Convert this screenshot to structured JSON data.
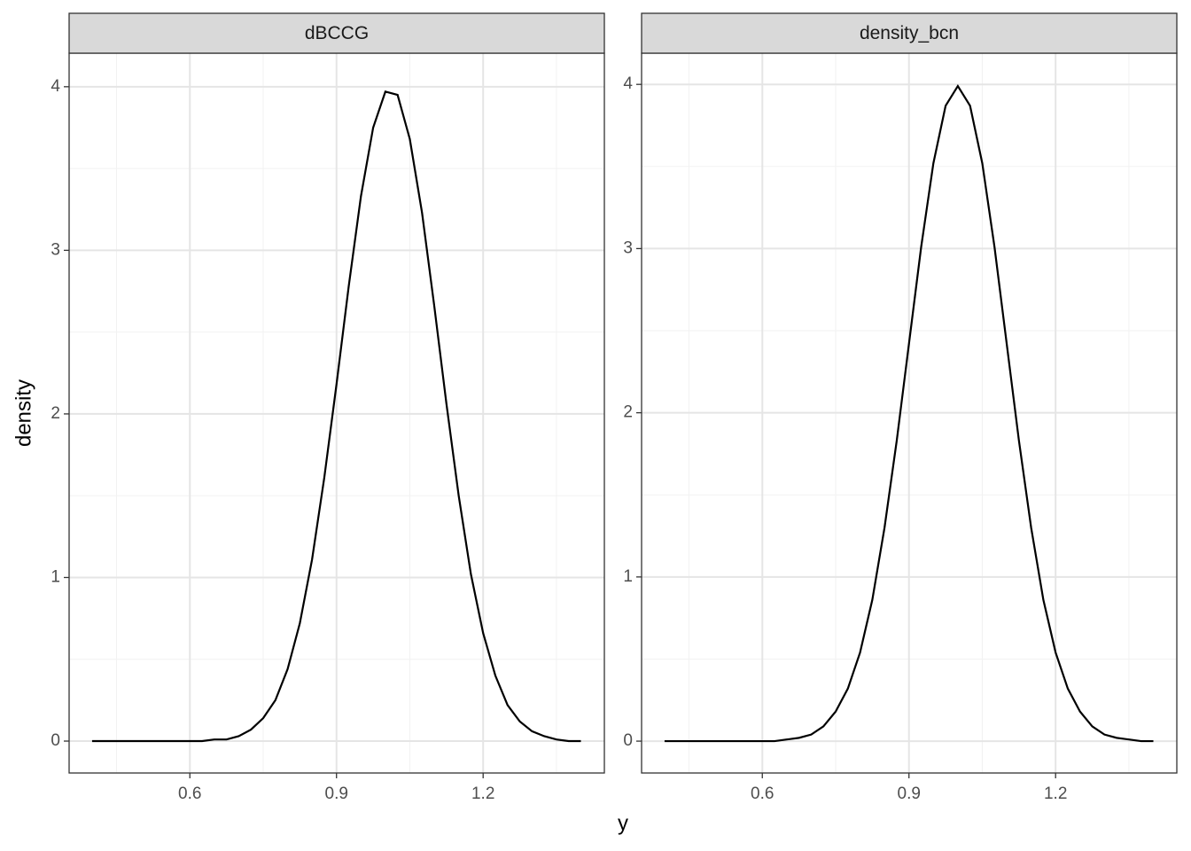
{
  "chart_data": [
    {
      "type": "line",
      "title": "dBCCG",
      "y_label": "density",
      "x_label": "y",
      "x": [
        0.4,
        0.425,
        0.45,
        0.475,
        0.5,
        0.525,
        0.55,
        0.575,
        0.6,
        0.625,
        0.65,
        0.675,
        0.7,
        0.725,
        0.75,
        0.775,
        0.8,
        0.825,
        0.85,
        0.875,
        0.9,
        0.925,
        0.95,
        0.975,
        1.0,
        1.025,
        1.05,
        1.075,
        1.1,
        1.125,
        1.15,
        1.175,
        1.2,
        1.225,
        1.25,
        1.275,
        1.3,
        1.325,
        1.35,
        1.375,
        1.4
      ],
      "series": [
        {
          "color": "#000000",
          "values": [
            0,
            0,
            0,
            0,
            0,
            0,
            0,
            0,
            0,
            0,
            0.01,
            0.01,
            0.03,
            0.07,
            0.14,
            0.25,
            0.44,
            0.72,
            1.11,
            1.61,
            2.18,
            2.78,
            3.33,
            3.75,
            3.97,
            3.95,
            3.68,
            3.23,
            2.66,
            2.06,
            1.5,
            1.02,
            0.66,
            0.4,
            0.22,
            0.12,
            0.06,
            0.03,
            0.01,
            0,
            0
          ]
        }
      ],
      "xlim": [
        0.353,
        1.448
      ],
      "ylim": [
        -0.195,
        4.205
      ],
      "xticks": [
        0.6,
        0.9,
        1.2
      ],
      "yticks": [
        0,
        1,
        2,
        3,
        4
      ],
      "grid": true
    },
    {
      "type": "line",
      "title": "density_bcn",
      "x": [
        0.4,
        0.425,
        0.45,
        0.475,
        0.5,
        0.525,
        0.55,
        0.575,
        0.6,
        0.625,
        0.65,
        0.675,
        0.7,
        0.725,
        0.75,
        0.775,
        0.8,
        0.825,
        0.85,
        0.875,
        0.9,
        0.925,
        0.95,
        0.975,
        1.0,
        1.025,
        1.05,
        1.075,
        1.1,
        1.125,
        1.15,
        1.175,
        1.2,
        1.225,
        1.25,
        1.275,
        1.3,
        1.325,
        1.35,
        1.375,
        1.4
      ],
      "series": [
        {
          "color": "#000000",
          "values": [
            0,
            0,
            0,
            0,
            0,
            0,
            0,
            0,
            0,
            0,
            0.01,
            0.02,
            0.04,
            0.09,
            0.18,
            0.32,
            0.54,
            0.86,
            1.3,
            1.83,
            2.42,
            3.01,
            3.52,
            3.87,
            3.99,
            3.87,
            3.52,
            3.01,
            2.42,
            1.83,
            1.3,
            0.86,
            0.54,
            0.32,
            0.18,
            0.09,
            0.04,
            0.02,
            0.01,
            0,
            0
          ]
        }
      ],
      "xlim": [
        0.353,
        1.448
      ],
      "ylim": [
        -0.194,
        4.19
      ],
      "xticks": [
        0.6,
        0.9,
        1.2
      ],
      "yticks": [
        0,
        1,
        2,
        3,
        4
      ],
      "grid": true
    }
  ]
}
